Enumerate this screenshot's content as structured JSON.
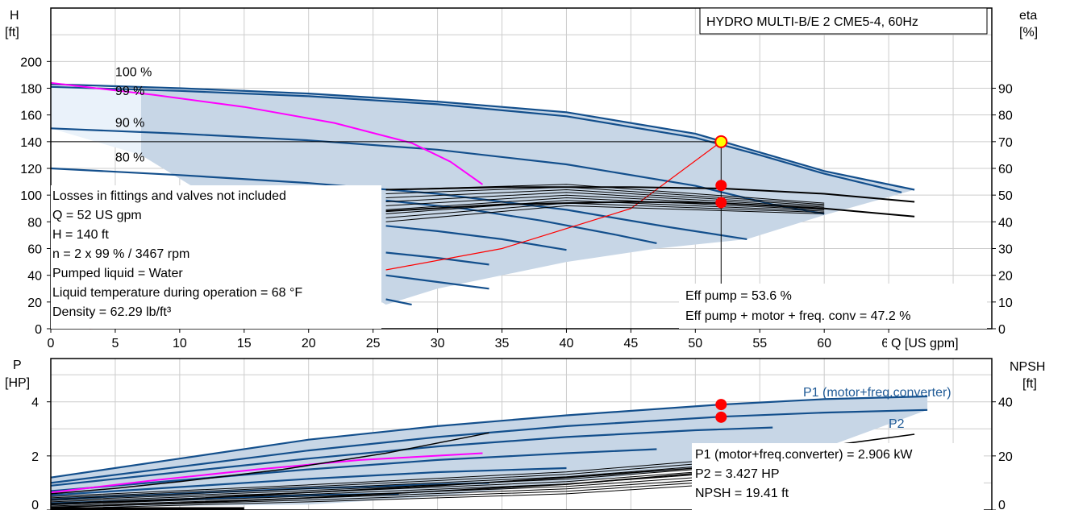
{
  "colors": {
    "curve_blue": "#134f8c",
    "band_fill": "#c7d6e6",
    "band_light": "#eaf2fa",
    "magenta": "#ff00ff",
    "red": "#ff0000",
    "grid": "#cccccc",
    "marker_yellow": "#ffff00"
  },
  "chart_data": [
    {
      "type": "line",
      "title": "HYDRO MULTI-B/E 2 CME5-4, 60Hz",
      "xlabel": "Q [US gpm]",
      "ylabel_left": [
        "H",
        "[ft]"
      ],
      "ylabel_right": [
        "eta",
        "[%]"
      ],
      "xlim": [
        0,
        73
      ],
      "ylim_left": [
        0,
        240
      ],
      "ylim_right": [
        0,
        120
      ],
      "x_ticks": [
        0,
        5,
        10,
        15,
        20,
        25,
        30,
        35,
        40,
        45,
        50,
        55,
        60,
        65
      ],
      "y_ticks_left": [
        0,
        20,
        40,
        60,
        80,
        100,
        120,
        140,
        160,
        180,
        200
      ],
      "y_ticks_right": [
        0,
        10,
        20,
        30,
        40,
        50,
        60,
        70,
        80,
        90
      ],
      "grid": true,
      "speed_labels": [
        {
          "text": "100 %",
          "x": 5,
          "y": 189
        },
        {
          "text": "99 %",
          "x": 5,
          "y": 175
        },
        {
          "text": "90 %",
          "x": 5,
          "y": 151
        },
        {
          "text": "80 %",
          "x": 5,
          "y": 125
        }
      ],
      "series": [
        {
          "values": [
            [
              0,
              183
            ],
            [
              10,
              180
            ],
            [
              20,
              176
            ],
            [
              30,
              170
            ],
            [
              40,
              162
            ],
            [
              50,
              146
            ],
            [
              55,
              132
            ],
            [
              60,
              118
            ],
            [
              67,
              104
            ]
          ]
        },
        {
          "values": [
            [
              0,
              181
            ],
            [
              10,
              178
            ],
            [
              20,
              174
            ],
            [
              30,
              168
            ],
            [
              40,
              159
            ],
            [
              50,
              143
            ],
            [
              55,
              130
            ],
            [
              60,
              116
            ],
            [
              66,
              102
            ]
          ]
        },
        {
          "values": [
            [
              0,
              150
            ],
            [
              10,
              146
            ],
            [
              20,
              141
            ],
            [
              30,
              134
            ],
            [
              40,
              123
            ],
            [
              50,
              107
            ],
            [
              56,
              93
            ],
            [
              60,
              86
            ]
          ]
        },
        {
          "values": [
            [
              0,
              120
            ],
            [
              10,
              115
            ],
            [
              20,
              109
            ],
            [
              30,
              101
            ],
            [
              40,
              89
            ],
            [
              48,
              76
            ],
            [
              54,
              67
            ]
          ]
        },
        {
          "values": [
            [
              26,
              96
            ],
            [
              32,
              90
            ],
            [
              38,
              81
            ],
            [
              44,
              70
            ],
            [
              47,
              64
            ]
          ]
        },
        {
          "values": [
            [
              26,
              77
            ],
            [
              30,
              73
            ],
            [
              35,
              67
            ],
            [
              40,
              59
            ]
          ]
        },
        {
          "values": [
            [
              26,
              57
            ],
            [
              30,
              53
            ],
            [
              34,
              48
            ]
          ]
        },
        {
          "values": [
            [
              26,
              40
            ],
            [
              30,
              35
            ],
            [
              34,
              30
            ]
          ]
        },
        {
          "values": [
            [
              26,
              22
            ],
            [
              28,
              18
            ]
          ]
        },
        {
          "values": [
            [
              0,
              184
            ],
            [
              8,
              175
            ],
            [
              15,
              166
            ],
            [
              22,
              154
            ],
            [
              28,
              139
            ],
            [
              31,
              125
            ],
            [
              33.5,
              108
            ]
          ]
        },
        {
          "values": [
            [
              26,
              44
            ],
            [
              35,
              60
            ],
            [
              45,
              90
            ],
            [
              52,
              140
            ]
          ]
        },
        {
          "values": [
            [
              26,
              104
            ],
            [
              35,
              106
            ],
            [
              45,
              106
            ],
            [
              52,
              105
            ],
            [
              60,
              101
            ],
            [
              67,
              95
            ]
          ]
        },
        {
          "values": [
            [
              26,
              88
            ],
            [
              35,
              93
            ],
            [
              45,
              95
            ],
            [
              52,
              94
            ],
            [
              60,
              90
            ],
            [
              67,
              84
            ]
          ]
        }
      ],
      "operating_point": {
        "x": 52,
        "y": 140
      },
      "eta_points": [
        {
          "x": 52,
          "y": 53.6
        },
        {
          "x": 52,
          "y": 47.2
        }
      ],
      "annotations_left": [
        "Losses in fittings and valves not included",
        "Q = 52 US gpm",
        "H = 140 ft",
        "n = 2 x 99 % / 3467 rpm",
        "Pumped liquid = Water",
        "Liquid temperature during operation = 68 °F",
        "Density = 62.29 lb/ft³"
      ],
      "annotations_right": [
        "Eff pump = 53.6 %",
        "Eff pump + motor + freq. conv = 47.2 %"
      ]
    },
    {
      "type": "line",
      "ylabel_left": [
        "P",
        "[HP]"
      ],
      "ylabel_right": [
        "NPSH",
        "[ft]"
      ],
      "xlim": [
        0,
        73
      ],
      "ylim_left": [
        0,
        5.6
      ],
      "ylim_right": [
        0,
        56
      ],
      "y_ticks_left": [
        0,
        2,
        4
      ],
      "y_ticks_right": [
        0,
        20,
        40
      ],
      "grid": true,
      "series_labels": [
        "P1 (motor+freq.converter)",
        "P2"
      ],
      "series": [
        {
          "values": [
            [
              0,
              1.2
            ],
            [
              10,
              1.9
            ],
            [
              20,
              2.6
            ],
            [
              30,
              3.1
            ],
            [
              40,
              3.5
            ],
            [
              52,
              3.9
            ],
            [
              60,
              4.1
            ],
            [
              68,
              4.2
            ]
          ]
        },
        {
          "values": [
            [
              0,
              1.0
            ],
            [
              10,
              1.6
            ],
            [
              20,
              2.2
            ],
            [
              30,
              2.7
            ],
            [
              40,
              3.1
            ],
            [
              52,
              3.45
            ],
            [
              60,
              3.6
            ],
            [
              68,
              3.7
            ]
          ]
        },
        {
          "values": [
            [
              0,
              0.9
            ],
            [
              10,
              1.4
            ],
            [
              20,
              1.9
            ],
            [
              30,
              2.35
            ],
            [
              40,
              2.7
            ],
            [
              50,
              2.95
            ],
            [
              56,
              3.05
            ]
          ]
        },
        {
          "values": [
            [
              0,
              0.7
            ],
            [
              10,
              1.1
            ],
            [
              20,
              1.5
            ],
            [
              30,
              1.85
            ],
            [
              40,
              2.1
            ],
            [
              47,
              2.25
            ]
          ]
        },
        {
          "values": [
            [
              0,
              0.55
            ],
            [
              10,
              0.85
            ],
            [
              20,
              1.15
            ],
            [
              30,
              1.4
            ],
            [
              40,
              1.55
            ]
          ]
        },
        {
          "values": [
            [
              0,
              0.4
            ],
            [
              10,
              0.6
            ],
            [
              20,
              0.8
            ],
            [
              30,
              0.95
            ],
            [
              34,
              1.0
            ]
          ]
        },
        {
          "values": [
            [
              0,
              0.25
            ],
            [
              10,
              0.4
            ],
            [
              20,
              0.55
            ],
            [
              27,
              0.6
            ]
          ]
        },
        {
          "values": [
            [
              0,
              0.65
            ],
            [
              8,
              1.1
            ],
            [
              16,
              1.5
            ],
            [
              24,
              1.85
            ],
            [
              33.5,
              2.1
            ]
          ]
        },
        {
          "values": [
            [
              0,
              0.6
            ],
            [
              5,
              0.8
            ],
            [
              10,
              1.05
            ],
            [
              18,
              1.5
            ],
            [
              26,
              2.1
            ],
            [
              34,
              2.85
            ]
          ]
        },
        {
          "values": [
            [
              0,
              0.2
            ],
            [
              10,
              0.4
            ],
            [
              20,
              0.65
            ],
            [
              30,
              0.9
            ],
            [
              40,
              1.2
            ],
            [
              50,
              1.55
            ],
            [
              54,
              1.8
            ],
            [
              60,
              2.35
            ],
            [
              67,
              2.8
            ]
          ]
        },
        {
          "values": [
            [
              0,
              0.1
            ],
            [
              10,
              0.25
            ],
            [
              20,
              0.45
            ],
            [
              30,
              0.7
            ],
            [
              40,
              0.95
            ],
            [
              50,
              1.35
            ],
            [
              54,
              1.55
            ]
          ]
        }
      ],
      "p_points": [
        {
          "x": 52,
          "y": 3.9
        },
        {
          "x": 52,
          "y": 3.43
        }
      ],
      "annotations_right": [
        "P1 (motor+freq.converter) = 2.906 kW",
        "P2 = 3.427 HP",
        "NPSH = 19.41 ft"
      ]
    }
  ]
}
